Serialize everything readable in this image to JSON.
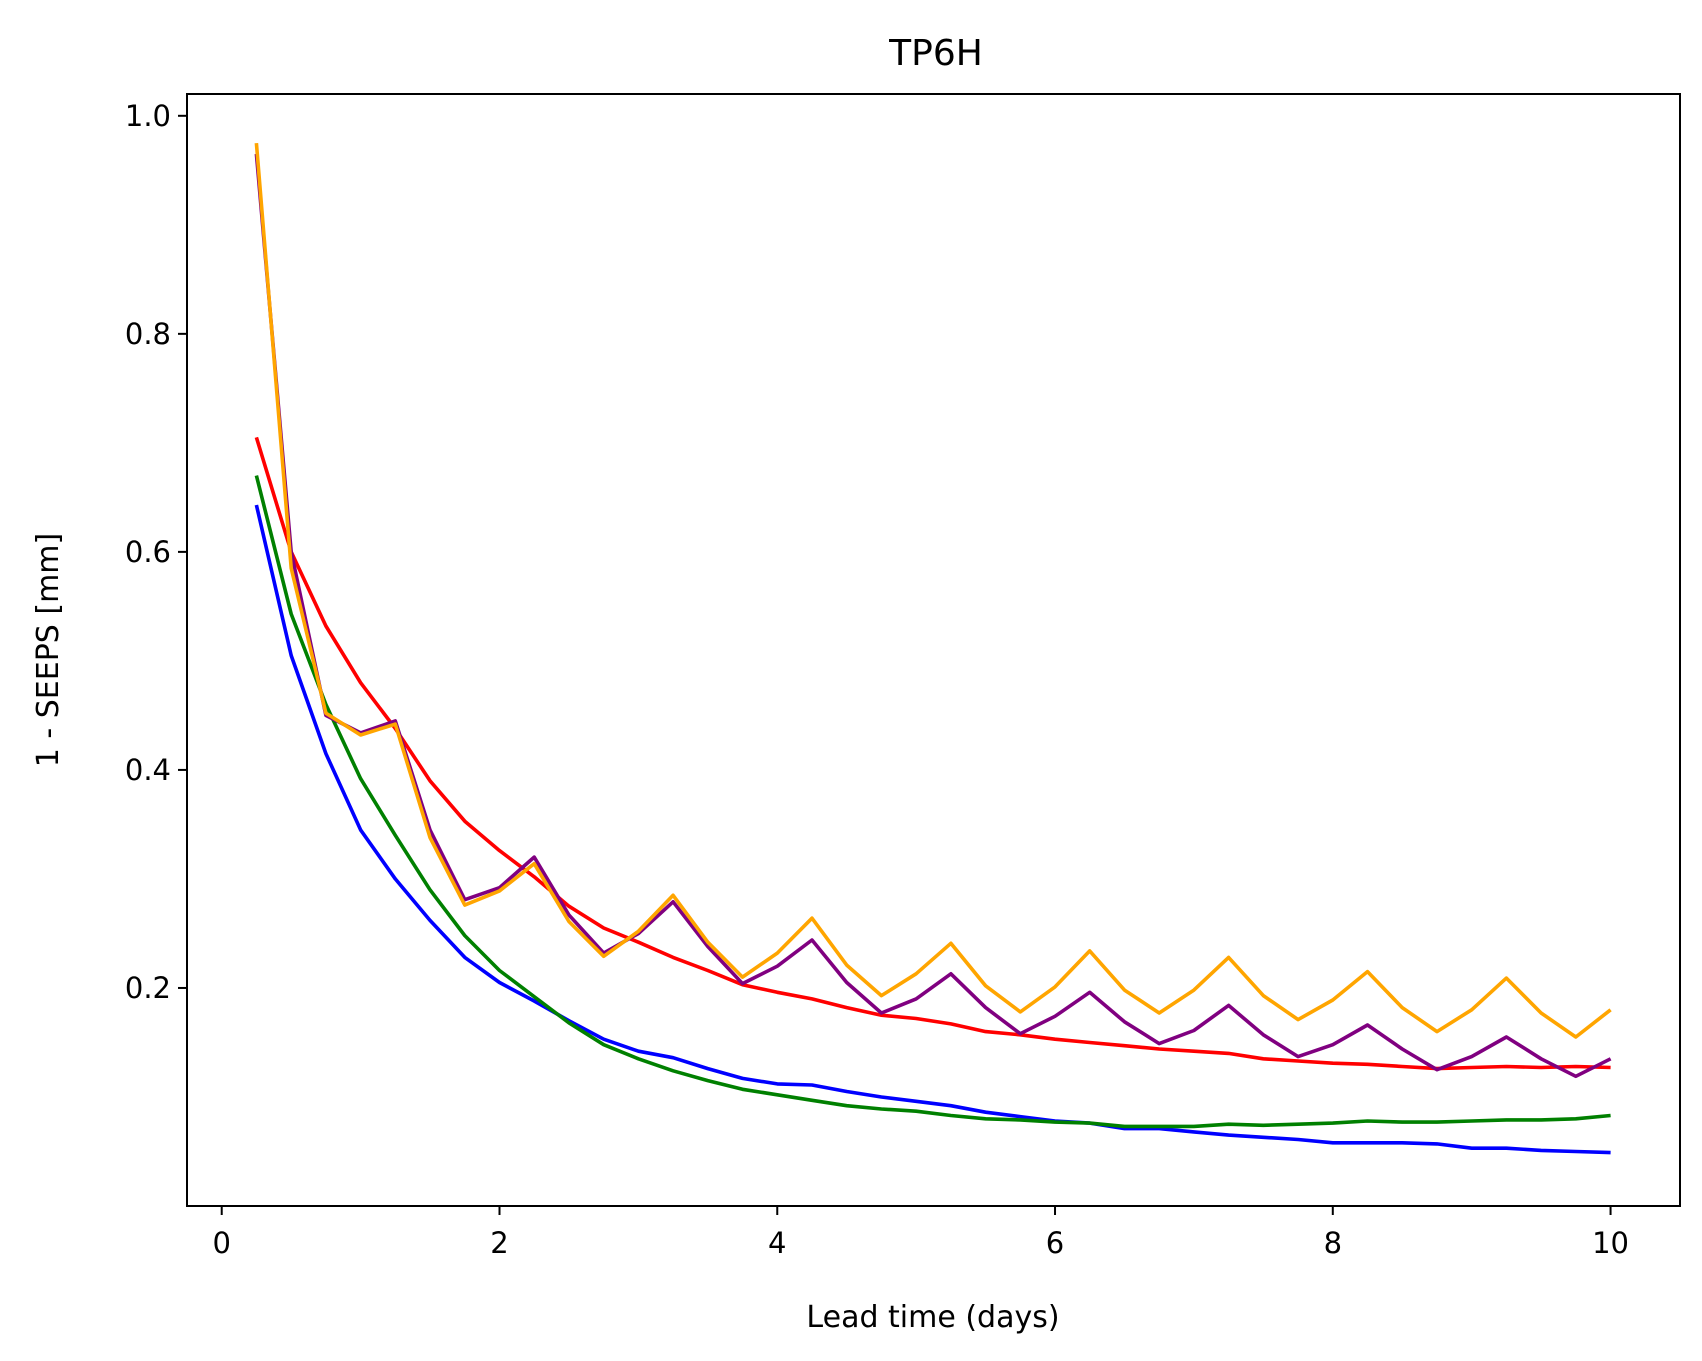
{
  "chart_data": {
    "type": "line",
    "title": "TP6H",
    "xlabel": "Lead time (days)",
    "ylabel": "1 - SEEPS [mm]",
    "xlim": [
      -0.25,
      10.5
    ],
    "ylim": [
      0.0,
      1.02
    ],
    "xticks": [
      0,
      2,
      4,
      6,
      8,
      10
    ],
    "yticks": [
      0.2,
      0.4,
      0.6,
      0.8,
      1.0
    ],
    "xtick_labels": [
      "0",
      "2",
      "4",
      "6",
      "8",
      "10"
    ],
    "ytick_labels": [
      "0.2",
      "0.4",
      "0.6",
      "0.8",
      "1.0"
    ],
    "grid": false,
    "legend": "none",
    "x": [
      0.25,
      0.5,
      0.75,
      1.0,
      1.25,
      1.5,
      1.75,
      2.0,
      2.25,
      2.5,
      2.75,
      3.0,
      3.25,
      3.5,
      3.75,
      4.0,
      4.25,
      4.5,
      4.75,
      5.0,
      5.25,
      5.5,
      5.75,
      6.0,
      6.25,
      6.5,
      6.75,
      7.0,
      7.25,
      7.5,
      7.75,
      8.0,
      8.25,
      8.5,
      8.75,
      9.0,
      9.25,
      9.5,
      9.75,
      10.0
    ],
    "series": [
      {
        "color": "#ff0000",
        "values": [
          0.705,
          0.6,
          0.532,
          0.48,
          0.438,
          0.39,
          0.353,
          0.326,
          0.302,
          0.275,
          0.255,
          0.242,
          0.228,
          0.216,
          0.203,
          0.196,
          0.19,
          0.182,
          0.175,
          0.172,
          0.167,
          0.16,
          0.157,
          0.153,
          0.15,
          0.147,
          0.144,
          0.142,
          0.14,
          0.135,
          0.133,
          0.131,
          0.13,
          0.128,
          0.126,
          0.127,
          0.128,
          0.127,
          0.128,
          0.127
        ]
      },
      {
        "color": "#0000ff",
        "values": [
          0.643,
          0.505,
          0.415,
          0.345,
          0.3,
          0.262,
          0.228,
          0.205,
          0.188,
          0.17,
          0.153,
          0.142,
          0.136,
          0.126,
          0.117,
          0.112,
          0.111,
          0.105,
          0.1,
          0.096,
          0.092,
          0.086,
          0.082,
          0.078,
          0.076,
          0.071,
          0.071,
          0.068,
          0.065,
          0.063,
          0.061,
          0.058,
          0.058,
          0.058,
          0.057,
          0.053,
          0.053,
          0.051,
          0.05,
          0.049
        ]
      },
      {
        "color": "#008000",
        "values": [
          0.67,
          0.543,
          0.46,
          0.392,
          0.34,
          0.29,
          0.248,
          0.216,
          0.192,
          0.168,
          0.148,
          0.135,
          0.124,
          0.115,
          0.107,
          0.102,
          0.097,
          0.092,
          0.089,
          0.087,
          0.083,
          0.08,
          0.079,
          0.077,
          0.076,
          0.073,
          0.073,
          0.073,
          0.075,
          0.074,
          0.075,
          0.076,
          0.078,
          0.077,
          0.077,
          0.078,
          0.079,
          0.079,
          0.08,
          0.083
        ]
      },
      {
        "color": "#800080",
        "values": [
          0.965,
          0.6,
          0.45,
          0.434,
          0.445,
          0.345,
          0.281,
          0.292,
          0.32,
          0.267,
          0.232,
          0.25,
          0.279,
          0.238,
          0.204,
          0.22,
          0.244,
          0.205,
          0.177,
          0.19,
          0.213,
          0.182,
          0.158,
          0.174,
          0.196,
          0.169,
          0.149,
          0.161,
          0.184,
          0.157,
          0.137,
          0.148,
          0.166,
          0.144,
          0.125,
          0.137,
          0.155,
          0.135,
          0.119,
          0.135
        ]
      },
      {
        "color": "#ffa500",
        "values": [
          0.975,
          0.585,
          0.452,
          0.432,
          0.442,
          0.338,
          0.276,
          0.289,
          0.314,
          0.261,
          0.229,
          0.252,
          0.285,
          0.242,
          0.21,
          0.232,
          0.264,
          0.221,
          0.193,
          0.213,
          0.241,
          0.202,
          0.178,
          0.201,
          0.234,
          0.198,
          0.177,
          0.198,
          0.228,
          0.193,
          0.171,
          0.189,
          0.215,
          0.182,
          0.16,
          0.18,
          0.209,
          0.177,
          0.155,
          0.18
        ]
      }
    ]
  }
}
